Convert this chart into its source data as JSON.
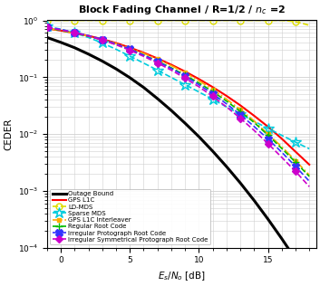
{
  "title": "Block Fading Channel / R=1/2 / n_c =2",
  "xlabel": "E_s/N_o [dB]",
  "ylabel": "CEDER",
  "xlim": [
    -1,
    18.5
  ],
  "ylim_log": [
    -4,
    0
  ],
  "curves": {
    "outage_bound": {
      "label": "Outage Bound",
      "color": "#000000",
      "linestyle": "-",
      "linewidth": 2.2,
      "marker": null,
      "markevery": null,
      "markersize": 0,
      "data_x": [
        -1,
        0,
        1,
        2,
        3,
        4,
        5,
        6,
        7,
        8,
        9,
        10,
        11,
        12,
        13,
        14,
        15,
        16,
        17,
        18
      ],
      "data_y": [
        0.5,
        0.41,
        0.33,
        0.255,
        0.192,
        0.14,
        0.098,
        0.066,
        0.042,
        0.026,
        0.0155,
        0.009,
        0.005,
        0.00268,
        0.00138,
        0.00068,
        0.00032,
        0.000145,
        6.3e-05,
        2.6e-05
      ]
    },
    "gps_l1c": {
      "label": "GPS L1C",
      "color": "#ff0000",
      "linestyle": "-",
      "linewidth": 1.5,
      "marker": null,
      "markevery": null,
      "markersize": 0,
      "data_x": [
        -1,
        0,
        1,
        2,
        3,
        4,
        5,
        6,
        7,
        8,
        9,
        10,
        11,
        12,
        13,
        14,
        15,
        16,
        17,
        18
      ],
      "data_y": [
        0.72,
        0.66,
        0.6,
        0.535,
        0.468,
        0.4,
        0.332,
        0.27,
        0.214,
        0.166,
        0.126,
        0.093,
        0.067,
        0.047,
        0.032,
        0.021,
        0.0135,
        0.0083,
        0.0049,
        0.0029
      ]
    },
    "ld_mds": {
      "label": "LD-MDS",
      "color": "#dddd00",
      "linestyle": "--",
      "linewidth": 1.2,
      "marker": "o",
      "markevery": 2,
      "markersize": 5,
      "markerfacecolor": "none",
      "markeredgecolor": "#dddd00",
      "data_x": [
        -1,
        0,
        1,
        2,
        3,
        4,
        5,
        6,
        7,
        8,
        9,
        10,
        11,
        12,
        13,
        14,
        15,
        16,
        17,
        18
      ],
      "data_y": [
        1.0,
        1.0,
        1.0,
        1.0,
        1.0,
        1.0,
        1.0,
        1.0,
        1.0,
        1.0,
        1.0,
        1.0,
        1.0,
        1.0,
        1.0,
        1.0,
        1.0,
        1.0,
        0.95,
        0.82
      ]
    },
    "sparse_mds": {
      "label": "Sparse MDS",
      "color": "#00ccdd",
      "linestyle": "--",
      "linewidth": 1.2,
      "marker": "*",
      "markevery": 2,
      "markersize": 9,
      "markerfacecolor": "none",
      "markeredgecolor": "#00ccdd",
      "data_x": [
        -1,
        0,
        1,
        2,
        3,
        4,
        5,
        6,
        7,
        8,
        9,
        10,
        11,
        12,
        13,
        14,
        15,
        16,
        17,
        18
      ],
      "data_y": [
        0.78,
        0.7,
        0.6,
        0.5,
        0.4,
        0.31,
        0.235,
        0.177,
        0.133,
        0.099,
        0.074,
        0.055,
        0.041,
        0.03,
        0.0225,
        0.0168,
        0.0126,
        0.0095,
        0.0072,
        0.0055
      ]
    },
    "gps_l1c_interleaver": {
      "label": "GPS L1C Interleaver",
      "color": "#ffaa00",
      "linestyle": "-.",
      "linewidth": 1.2,
      "marker": "s",
      "markevery": 2,
      "markersize": 3,
      "markerfacecolor": "#ffaa00",
      "markeredgecolor": "#ffaa00",
      "data_x": [
        -1,
        0,
        1,
        2,
        3,
        4,
        5,
        6,
        7,
        8,
        9,
        10,
        11,
        12,
        13,
        14,
        15,
        16,
        17,
        18
      ],
      "data_y": [
        0.72,
        0.66,
        0.595,
        0.528,
        0.46,
        0.392,
        0.325,
        0.263,
        0.207,
        0.16,
        0.12,
        0.087,
        0.061,
        0.041,
        0.027,
        0.017,
        0.01,
        0.006,
        0.0034,
        0.0019
      ]
    },
    "regular_root_code": {
      "label": "Regular Root Code",
      "color": "#00bb00",
      "linestyle": "--",
      "linewidth": 1.2,
      "marker": "+",
      "markevery": 2,
      "markersize": 6,
      "markerfacecolor": "#00bb00",
      "markeredgecolor": "#00bb00",
      "data_x": [
        -1,
        0,
        1,
        2,
        3,
        4,
        5,
        6,
        7,
        8,
        9,
        10,
        11,
        12,
        13,
        14,
        15,
        16,
        17,
        18
      ],
      "data_y": [
        0.74,
        0.67,
        0.6,
        0.525,
        0.452,
        0.378,
        0.308,
        0.245,
        0.191,
        0.146,
        0.109,
        0.079,
        0.056,
        0.038,
        0.025,
        0.016,
        0.0096,
        0.0056,
        0.0032,
        0.0018
      ]
    },
    "irregular_protograph": {
      "label": "Irregular Protograph Root Code",
      "color": "#3333ff",
      "linestyle": "--",
      "linewidth": 1.2,
      "marker": "X",
      "markevery": 2,
      "markersize": 6,
      "markerfacecolor": "#3333ff",
      "markeredgecolor": "#3333ff",
      "data_x": [
        -1,
        0,
        1,
        2,
        3,
        4,
        5,
        6,
        7,
        8,
        9,
        10,
        11,
        12,
        13,
        14,
        15,
        16,
        17,
        18
      ],
      "data_y": [
        0.76,
        0.69,
        0.615,
        0.54,
        0.463,
        0.385,
        0.31,
        0.245,
        0.188,
        0.142,
        0.104,
        0.074,
        0.051,
        0.034,
        0.022,
        0.0136,
        0.0082,
        0.0048,
        0.0027,
        0.00148
      ]
    },
    "irregular_symmetrical": {
      "label": "Irregular Symmetrical Protograph Root Code",
      "color": "#cc00cc",
      "linestyle": "--",
      "linewidth": 1.2,
      "marker": "D",
      "markevery": 2,
      "markersize": 4,
      "markerfacecolor": "#cc00cc",
      "markeredgecolor": "#cc00cc",
      "data_x": [
        -1,
        0,
        1,
        2,
        3,
        4,
        5,
        6,
        7,
        8,
        9,
        10,
        11,
        12,
        13,
        14,
        15,
        16,
        17,
        18
      ],
      "data_y": [
        0.75,
        0.68,
        0.605,
        0.528,
        0.45,
        0.372,
        0.298,
        0.233,
        0.178,
        0.133,
        0.096,
        0.068,
        0.046,
        0.03,
        0.019,
        0.0116,
        0.0068,
        0.0039,
        0.0022,
        0.00119
      ]
    }
  },
  "legend_fontsize": 5.0,
  "axis_fontsize": 7.5,
  "title_fontsize": 8.0,
  "tick_fontsize": 6.5,
  "grid_color": "#d0d0d0",
  "background_color": "#ffffff"
}
